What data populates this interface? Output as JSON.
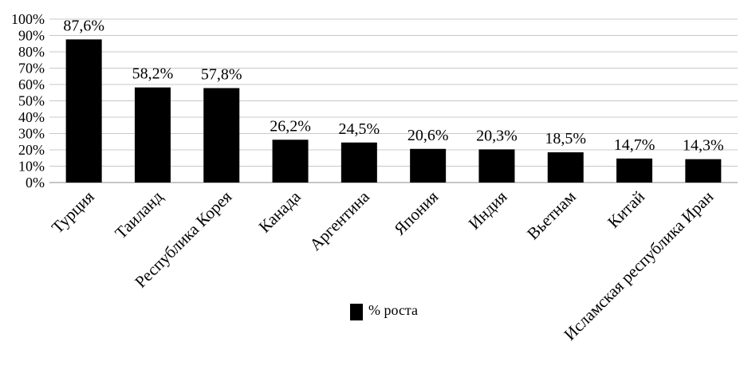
{
  "chart_data": {
    "type": "bar",
    "categories": [
      "Турция",
      "Таиланд",
      "Республика Корея",
      "Канада",
      "Аргентина",
      "Япония",
      "Индия",
      "Вьетнам",
      "Китай",
      "Исламская республика Иран"
    ],
    "series": [
      {
        "name": "% роста",
        "values": [
          87.6,
          58.2,
          57.8,
          26.2,
          24.5,
          20.6,
          20.3,
          18.5,
          14.7,
          14.3
        ],
        "data_labels": [
          "87,6%",
          "58,2%",
          "57,8%",
          "26,2%",
          "24,5%",
          "20,6%",
          "20,3%",
          "18,5%",
          "14,7%",
          "14,3%"
        ],
        "color": "#000000"
      }
    ],
    "y_ticks": [
      "0%",
      "10%",
      "20%",
      "30%",
      "40%",
      "50%",
      "60%",
      "70%",
      "80%",
      "90%",
      "100%"
    ],
    "ylim": [
      0,
      100
    ],
    "grid": true,
    "grid_color": "#c8c8c8",
    "legend_position": "bottom-center",
    "title": "",
    "xlabel": "",
    "ylabel": ""
  }
}
